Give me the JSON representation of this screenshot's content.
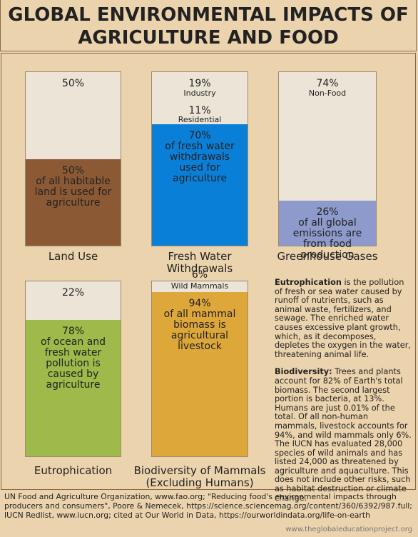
{
  "title": "GLOBAL ENVIRONMENTAL IMPACTS OF AGRICULTURE AND FOOD",
  "chart_data": [
    {
      "type": "stacked-bar",
      "title": "Land Use",
      "series": [
        {
          "name": "of all habitable land is used for agriculture",
          "color": "#8b5a35",
          "values": [
            50
          ],
          "value_labels": [
            "50%"
          ]
        },
        {
          "color": "#ece4d6",
          "values": [
            50
          ],
          "value_labels": [
            "50%"
          ]
        }
      ]
    },
    {
      "type": "stacked-bar",
      "title": "Fresh Water Withdrawals",
      "series": [
        {
          "name": "of fresh water withdrawals used for agriculture",
          "color": "#0a7fd8",
          "values": [
            70
          ],
          "value_labels": [
            "70%"
          ]
        },
        {
          "name": "Residential",
          "color": "#ece4d6",
          "values": [
            11
          ],
          "value_labels": [
            "11%"
          ]
        },
        {
          "name": "Industry",
          "color": "#ece4d6",
          "values": [
            19
          ],
          "value_labels": [
            "19%"
          ]
        }
      ]
    },
    {
      "type": "stacked-bar",
      "title": "Greenhouse Gases",
      "series": [
        {
          "name": "of all global emissions are from food production",
          "color": "#8e9acb",
          "values": [
            26
          ],
          "value_labels": [
            "26%"
          ]
        },
        {
          "name": "Non-Food",
          "color": "#ece4d6",
          "values": [
            74
          ],
          "value_labels": [
            "74%"
          ]
        }
      ]
    },
    {
      "type": "stacked-bar",
      "title": "Eutrophication",
      "series": [
        {
          "name": "of ocean and fresh water pollution is caused by agriculture",
          "color": "#9dba4b",
          "values": [
            78
          ],
          "value_labels": [
            "78%"
          ]
        },
        {
          "color": "#ece4d6",
          "values": [
            22
          ],
          "value_labels": [
            "22%"
          ]
        }
      ]
    },
    {
      "type": "stacked-bar",
      "title": "Biodiversity of Mammals (Excluding Humans)",
      "series": [
        {
          "name": "of all mammal biomass is agricultural livestock",
          "color": "#dea73a",
          "values": [
            94
          ],
          "value_labels": [
            "94%"
          ]
        },
        {
          "name": "Wild Mammals",
          "color": "#ece4d6",
          "values": [
            6
          ],
          "value_labels": [
            "6%"
          ]
        }
      ]
    }
  ],
  "notes": [
    {
      "term": "Eutrophication",
      "text": " is the pollution of fresh or sea water caused by runoff of nutrients, such as animal waste, fertilizers, and sewage. The enriched water causes excessive plant growth, which, as it decomposes, depletes the oxygen in the water, threatening animal life."
    },
    {
      "term": "Biodiversity:",
      "text": " Trees and plants account for 82% of Earth's total biomass. The second largest portion is bacteria, at 13%. Humans are just 0.01% of the total. Of all non-human mammals, livestock accounts for 94%, and wild mammals only 6%. The IUCN has evaluated 28,000 species of wild animals and has listed 24,000 as threatened by agriculture and aquaculture. This does not include other risks, such as habitat destruction or climate change."
    }
  ],
  "source": "UN Food and Agriculture Organization, www.fao.org; \"Reducing food's environmental impacts through producers and consumers\", Poore & Nemecek, https://science.sciencemag.org/content/360/6392/987.full; IUCN Redlist, www.iucn.org; cited at Our World in Data, https://ourworldindata.org/life-on-earth",
  "credit": "www.theglobaleducationproject.org"
}
